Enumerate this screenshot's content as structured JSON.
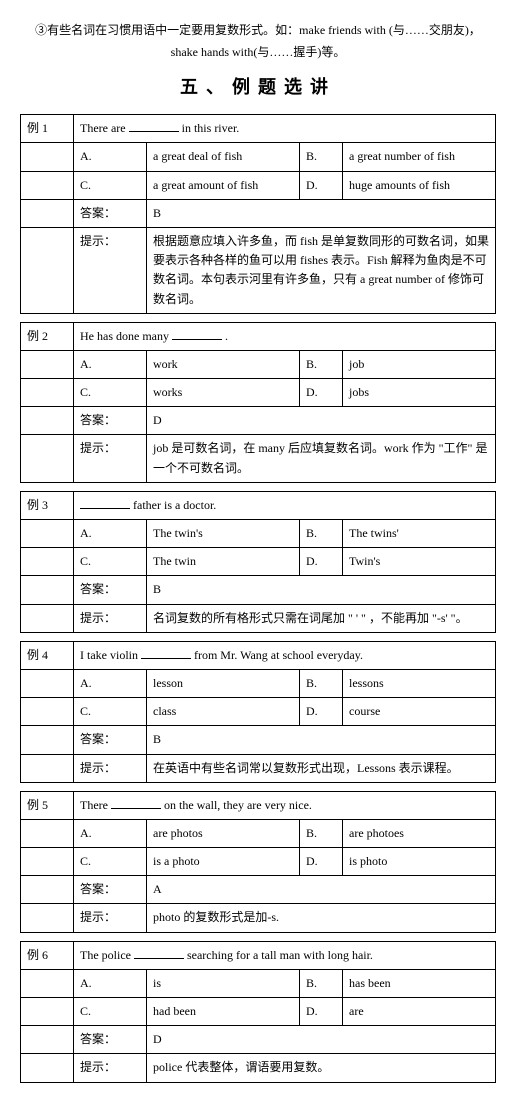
{
  "intro_line1": "③有些名词在习惯用语中一定要用复数形式。如：make friends with (与……交朋友)，",
  "intro_line2": "shake hands with(与……握手)等。",
  "section_title": "五、例题选讲",
  "examples": [
    {
      "label": "例 1",
      "stem_pre": "There are ",
      "stem_post": " in this river.",
      "A": "a great deal of fish",
      "B": "a great number of fish",
      "C": "a great amount of fish",
      "D": "huge amounts of fish",
      "answer_label": "答案：",
      "answer": "B",
      "hint_label": "提示：",
      "hint": "根据题意应填入许多鱼，而 fish 是单复数同形的可数名词，如果要表示各种各样的鱼可以用 fishes 表示。Fish 解释为鱼肉是不可数名词。本句表示河里有许多鱼，只有 a great number of 修饰可数名词。"
    },
    {
      "label": "例 2",
      "stem_pre": "He has done many ",
      "stem_post": " .",
      "A": "work",
      "B": "job",
      "C": "works",
      "D": "jobs",
      "answer_label": "答案：",
      "answer": "D",
      "hint_label": "提示：",
      "hint": "job 是可数名词，在 many 后应填复数名词。work 作为 \"工作\" 是一个不可数名词。"
    },
    {
      "label": "例 3",
      "stem_pre": "",
      "stem_post": " father is a doctor.",
      "A": "The twin's",
      "B": "The twins'",
      "C": "The twin",
      "D": "Twin's",
      "answer_label": "答案：",
      "answer": "B",
      "hint_label": "提示：",
      "hint": "名词复数的所有格形式只需在词尾加 \" ' \" ，不能再加 \"-s' \"。"
    },
    {
      "label": "例 4",
      "stem_pre": "I take violin ",
      "stem_post": " from Mr. Wang at school everyday.",
      "A": "lesson",
      "B": "lessons",
      "C": "class",
      "D": "course",
      "answer_label": "答案：",
      "answer": "B",
      "hint_label": "提示：",
      "hint": "在英语中有些名词常以复数形式出现，Lessons 表示课程。"
    },
    {
      "label": "例 5",
      "stem_pre": "There ",
      "stem_post": " on the wall, they are very nice.",
      "A": "are photos",
      "B": "are photoes",
      "C": "is a photo",
      "D": "is photo",
      "answer_label": "答案：",
      "answer": "A",
      "hint_label": "提示：",
      "hint": "photo 的复数形式是加-s."
    },
    {
      "label": "例 6",
      "stem_pre": "The police ",
      "stem_post": " searching for a tall man with long hair.",
      "A": "is",
      "B": "has been",
      "C": "had been",
      "D": "are",
      "answer_label": "答案：",
      "answer": "D",
      "hint_label": "提示：",
      "hint": "police 代表整体，谓语要用复数。"
    }
  ]
}
